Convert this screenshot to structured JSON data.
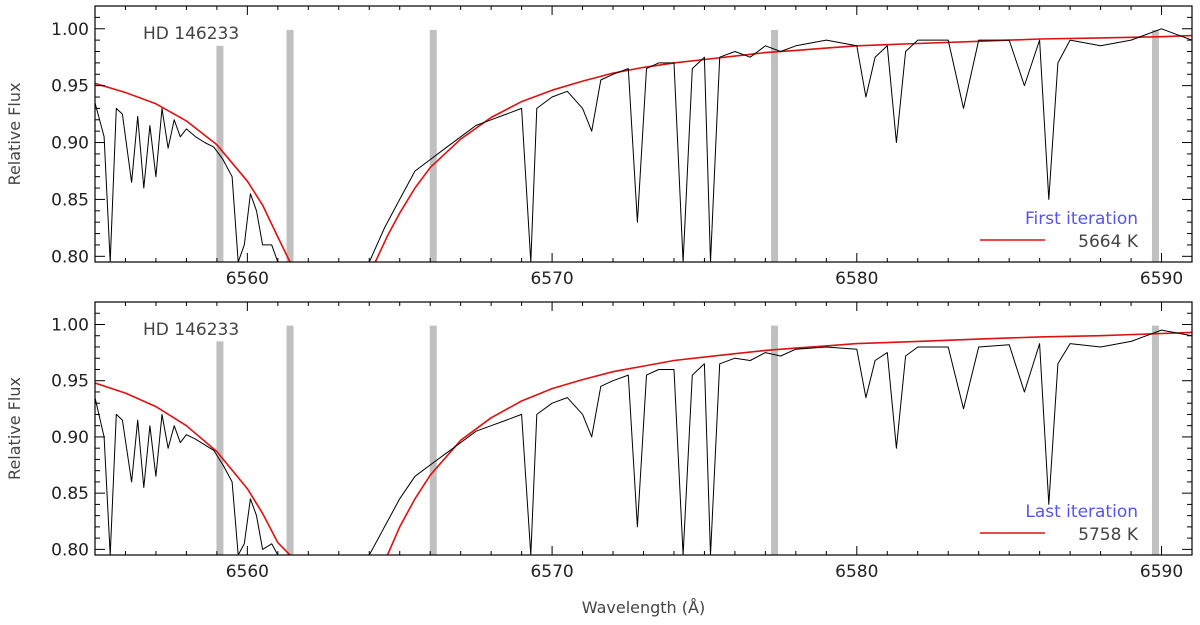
{
  "chart_data": [
    {
      "type": "line",
      "star": "HD 146233",
      "ylabel": "Relative Flux",
      "xlabel": "",
      "xlim": [
        6555,
        6591
      ],
      "ylim": [
        0.795,
        1.02
      ],
      "x_ticks": [
        6560,
        6570,
        6580,
        6590
      ],
      "y_ticks": [
        "0.80",
        "0.85",
        "0.90",
        "0.95",
        "1.00"
      ],
      "mask_bands": [
        6559.1,
        6561.4,
        6566.1,
        6577.3,
        6589.8
      ],
      "legend_title": "First iteration",
      "legend_color": "#5555ee",
      "series": [
        {
          "name": "5664 K",
          "color": "#e01010",
          "role": "model",
          "x": [
            6555.0,
            6556.0,
            6557.0,
            6558.0,
            6559.0,
            6560.0,
            6560.5,
            6561.0,
            6561.4
          ],
          "y": [
            0.952,
            0.944,
            0.934,
            0.919,
            0.898,
            0.866,
            0.845,
            0.817,
            0.795
          ]
        },
        {
          "name": "",
          "color": "#e01010",
          "role": "model",
          "x": [
            6564.2,
            6564.6,
            6565.0,
            6565.5,
            6566.0,
            6567.0,
            6568.0,
            6569.0,
            6570.0,
            6571.0,
            6572.0,
            6573.0,
            6574.0,
            6575.0,
            6576.0,
            6577.0,
            6578.0,
            6579.0,
            6580.0,
            6582.0,
            6584.0,
            6586.0,
            6588.0,
            6590.0,
            6591.0
          ],
          "y": [
            0.795,
            0.818,
            0.838,
            0.86,
            0.878,
            0.903,
            0.922,
            0.936,
            0.946,
            0.954,
            0.961,
            0.966,
            0.97,
            0.973,
            0.976,
            0.979,
            0.981,
            0.983,
            0.985,
            0.987,
            0.989,
            0.991,
            0.992,
            0.993,
            0.994
          ]
        },
        {
          "name": "",
          "color": "#000000",
          "role": "observed",
          "x": [
            6555.0,
            6555.3,
            6555.5,
            6555.7,
            6555.9,
            6556.2,
            6556.4,
            6556.6,
            6556.8,
            6557.0,
            6557.2,
            6557.4,
            6557.6,
            6557.8,
            6558.0,
            6558.3,
            6558.6,
            6558.9,
            6559.2,
            6559.5,
            6559.7,
            6559.9,
            6560.1,
            6560.3,
            6560.5,
            6560.8,
            6561.0
          ],
          "y": [
            0.935,
            0.905,
            0.795,
            0.93,
            0.925,
            0.865,
            0.923,
            0.86,
            0.915,
            0.87,
            0.93,
            0.895,
            0.92,
            0.905,
            0.912,
            0.905,
            0.9,
            0.896,
            0.885,
            0.87,
            0.795,
            0.81,
            0.855,
            0.84,
            0.81,
            0.81,
            0.795
          ]
        },
        {
          "name": "",
          "color": "#000000",
          "role": "observed",
          "x": [
            6564.0,
            6564.5,
            6565.0,
            6565.5,
            6566.0,
            6566.5,
            6567.0,
            6567.5,
            6568.0,
            6568.5,
            6569.0,
            6569.3,
            6569.5,
            6570.0,
            6570.5,
            6571.0,
            6571.3,
            6571.6,
            6572.0,
            6572.5,
            6572.8,
            6573.1,
            6573.5,
            6574.0,
            6574.3,
            6574.6,
            6575.0,
            6575.2,
            6575.5,
            6576.0,
            6576.5,
            6577.0,
            6577.5,
            6578.0,
            6579.0,
            6580.0,
            6580.3,
            6580.6,
            6581.0,
            6581.3,
            6581.6,
            6582.0,
            6583.0,
            6583.5,
            6584.0,
            6585.0,
            6585.5,
            6586.0,
            6586.3,
            6586.6,
            6587.0,
            6588.0,
            6589.0,
            6590.0,
            6591.0
          ],
          "y": [
            0.795,
            0.825,
            0.85,
            0.875,
            0.885,
            0.895,
            0.905,
            0.915,
            0.92,
            0.925,
            0.93,
            0.795,
            0.93,
            0.94,
            0.945,
            0.93,
            0.91,
            0.955,
            0.96,
            0.965,
            0.83,
            0.965,
            0.97,
            0.97,
            0.795,
            0.965,
            0.975,
            0.795,
            0.975,
            0.98,
            0.975,
            0.985,
            0.98,
            0.985,
            0.99,
            0.985,
            0.94,
            0.975,
            0.985,
            0.9,
            0.98,
            0.99,
            0.99,
            0.93,
            0.99,
            0.99,
            0.95,
            0.99,
            0.85,
            0.97,
            0.99,
            0.985,
            0.99,
            1.0,
            0.99
          ]
        }
      ]
    },
    {
      "type": "line",
      "star": "HD 146233",
      "ylabel": "Relative Flux",
      "xlabel": "Wavelength (Å)",
      "xlim": [
        6555,
        6591
      ],
      "ylim": [
        0.795,
        1.02
      ],
      "x_ticks": [
        6560,
        6570,
        6580,
        6590
      ],
      "y_ticks": [
        "0.80",
        "0.85",
        "0.90",
        "0.95",
        "1.00"
      ],
      "mask_bands": [
        6559.1,
        6561.4,
        6566.1,
        6577.3,
        6589.8
      ],
      "legend_title": "Last iteration",
      "legend_color": "#5555ee",
      "series": [
        {
          "name": "5758 K",
          "color": "#e01010",
          "role": "model",
          "x": [
            6555.0,
            6556.0,
            6557.0,
            6558.0,
            6559.0,
            6560.0,
            6560.5,
            6561.0,
            6561.4
          ],
          "y": [
            0.948,
            0.939,
            0.927,
            0.91,
            0.887,
            0.854,
            0.832,
            0.806,
            0.795
          ]
        },
        {
          "name": "",
          "color": "#e01010",
          "role": "model",
          "x": [
            6564.6,
            6565.0,
            6565.5,
            6566.0,
            6567.0,
            6568.0,
            6569.0,
            6570.0,
            6571.0,
            6572.0,
            6573.0,
            6574.0,
            6575.0,
            6576.0,
            6577.0,
            6578.0,
            6579.0,
            6580.0,
            6582.0,
            6584.0,
            6586.0,
            6588.0,
            6590.0,
            6591.0
          ],
          "y": [
            0.795,
            0.82,
            0.845,
            0.866,
            0.897,
            0.917,
            0.932,
            0.943,
            0.951,
            0.958,
            0.963,
            0.968,
            0.971,
            0.974,
            0.977,
            0.979,
            0.981,
            0.983,
            0.985,
            0.987,
            0.989,
            0.99,
            0.992,
            0.993
          ]
        },
        {
          "name": "",
          "color": "#000000",
          "role": "observed",
          "x": [
            6555.0,
            6555.3,
            6555.5,
            6555.7,
            6555.9,
            6556.2,
            6556.4,
            6556.6,
            6556.8,
            6557.0,
            6557.2,
            6557.4,
            6557.6,
            6557.8,
            6558.0,
            6558.3,
            6558.6,
            6558.9,
            6559.2,
            6559.5,
            6559.7,
            6559.9,
            6560.1,
            6560.3,
            6560.5,
            6560.8,
            6561.0
          ],
          "y": [
            0.935,
            0.9,
            0.795,
            0.92,
            0.915,
            0.86,
            0.915,
            0.855,
            0.91,
            0.865,
            0.92,
            0.89,
            0.91,
            0.895,
            0.902,
            0.898,
            0.893,
            0.888,
            0.875,
            0.86,
            0.795,
            0.805,
            0.845,
            0.83,
            0.8,
            0.805,
            0.795
          ]
        },
        {
          "name": "",
          "color": "#000000",
          "role": "observed",
          "x": [
            6564.0,
            6564.5,
            6565.0,
            6565.5,
            6566.0,
            6566.5,
            6567.0,
            6567.5,
            6568.0,
            6568.5,
            6569.0,
            6569.3,
            6569.5,
            6570.0,
            6570.5,
            6571.0,
            6571.3,
            6571.6,
            6572.0,
            6572.5,
            6572.8,
            6573.1,
            6573.5,
            6574.0,
            6574.3,
            6574.6,
            6575.0,
            6575.2,
            6575.5,
            6576.0,
            6576.5,
            6577.0,
            6577.5,
            6578.0,
            6579.0,
            6580.0,
            6580.3,
            6580.6,
            6581.0,
            6581.3,
            6581.6,
            6582.0,
            6583.0,
            6583.5,
            6584.0,
            6585.0,
            6585.5,
            6586.0,
            6586.3,
            6586.6,
            6587.0,
            6588.0,
            6589.0,
            6590.0,
            6591.0
          ],
          "y": [
            0.795,
            0.82,
            0.845,
            0.865,
            0.875,
            0.885,
            0.895,
            0.905,
            0.91,
            0.915,
            0.92,
            0.795,
            0.92,
            0.93,
            0.935,
            0.92,
            0.9,
            0.945,
            0.95,
            0.955,
            0.82,
            0.955,
            0.96,
            0.96,
            0.795,
            0.955,
            0.965,
            0.795,
            0.965,
            0.97,
            0.968,
            0.975,
            0.972,
            0.978,
            0.98,
            0.978,
            0.935,
            0.968,
            0.975,
            0.89,
            0.972,
            0.98,
            0.98,
            0.925,
            0.98,
            0.982,
            0.94,
            0.983,
            0.84,
            0.965,
            0.983,
            0.98,
            0.985,
            0.995,
            0.99
          ]
        }
      ]
    }
  ]
}
